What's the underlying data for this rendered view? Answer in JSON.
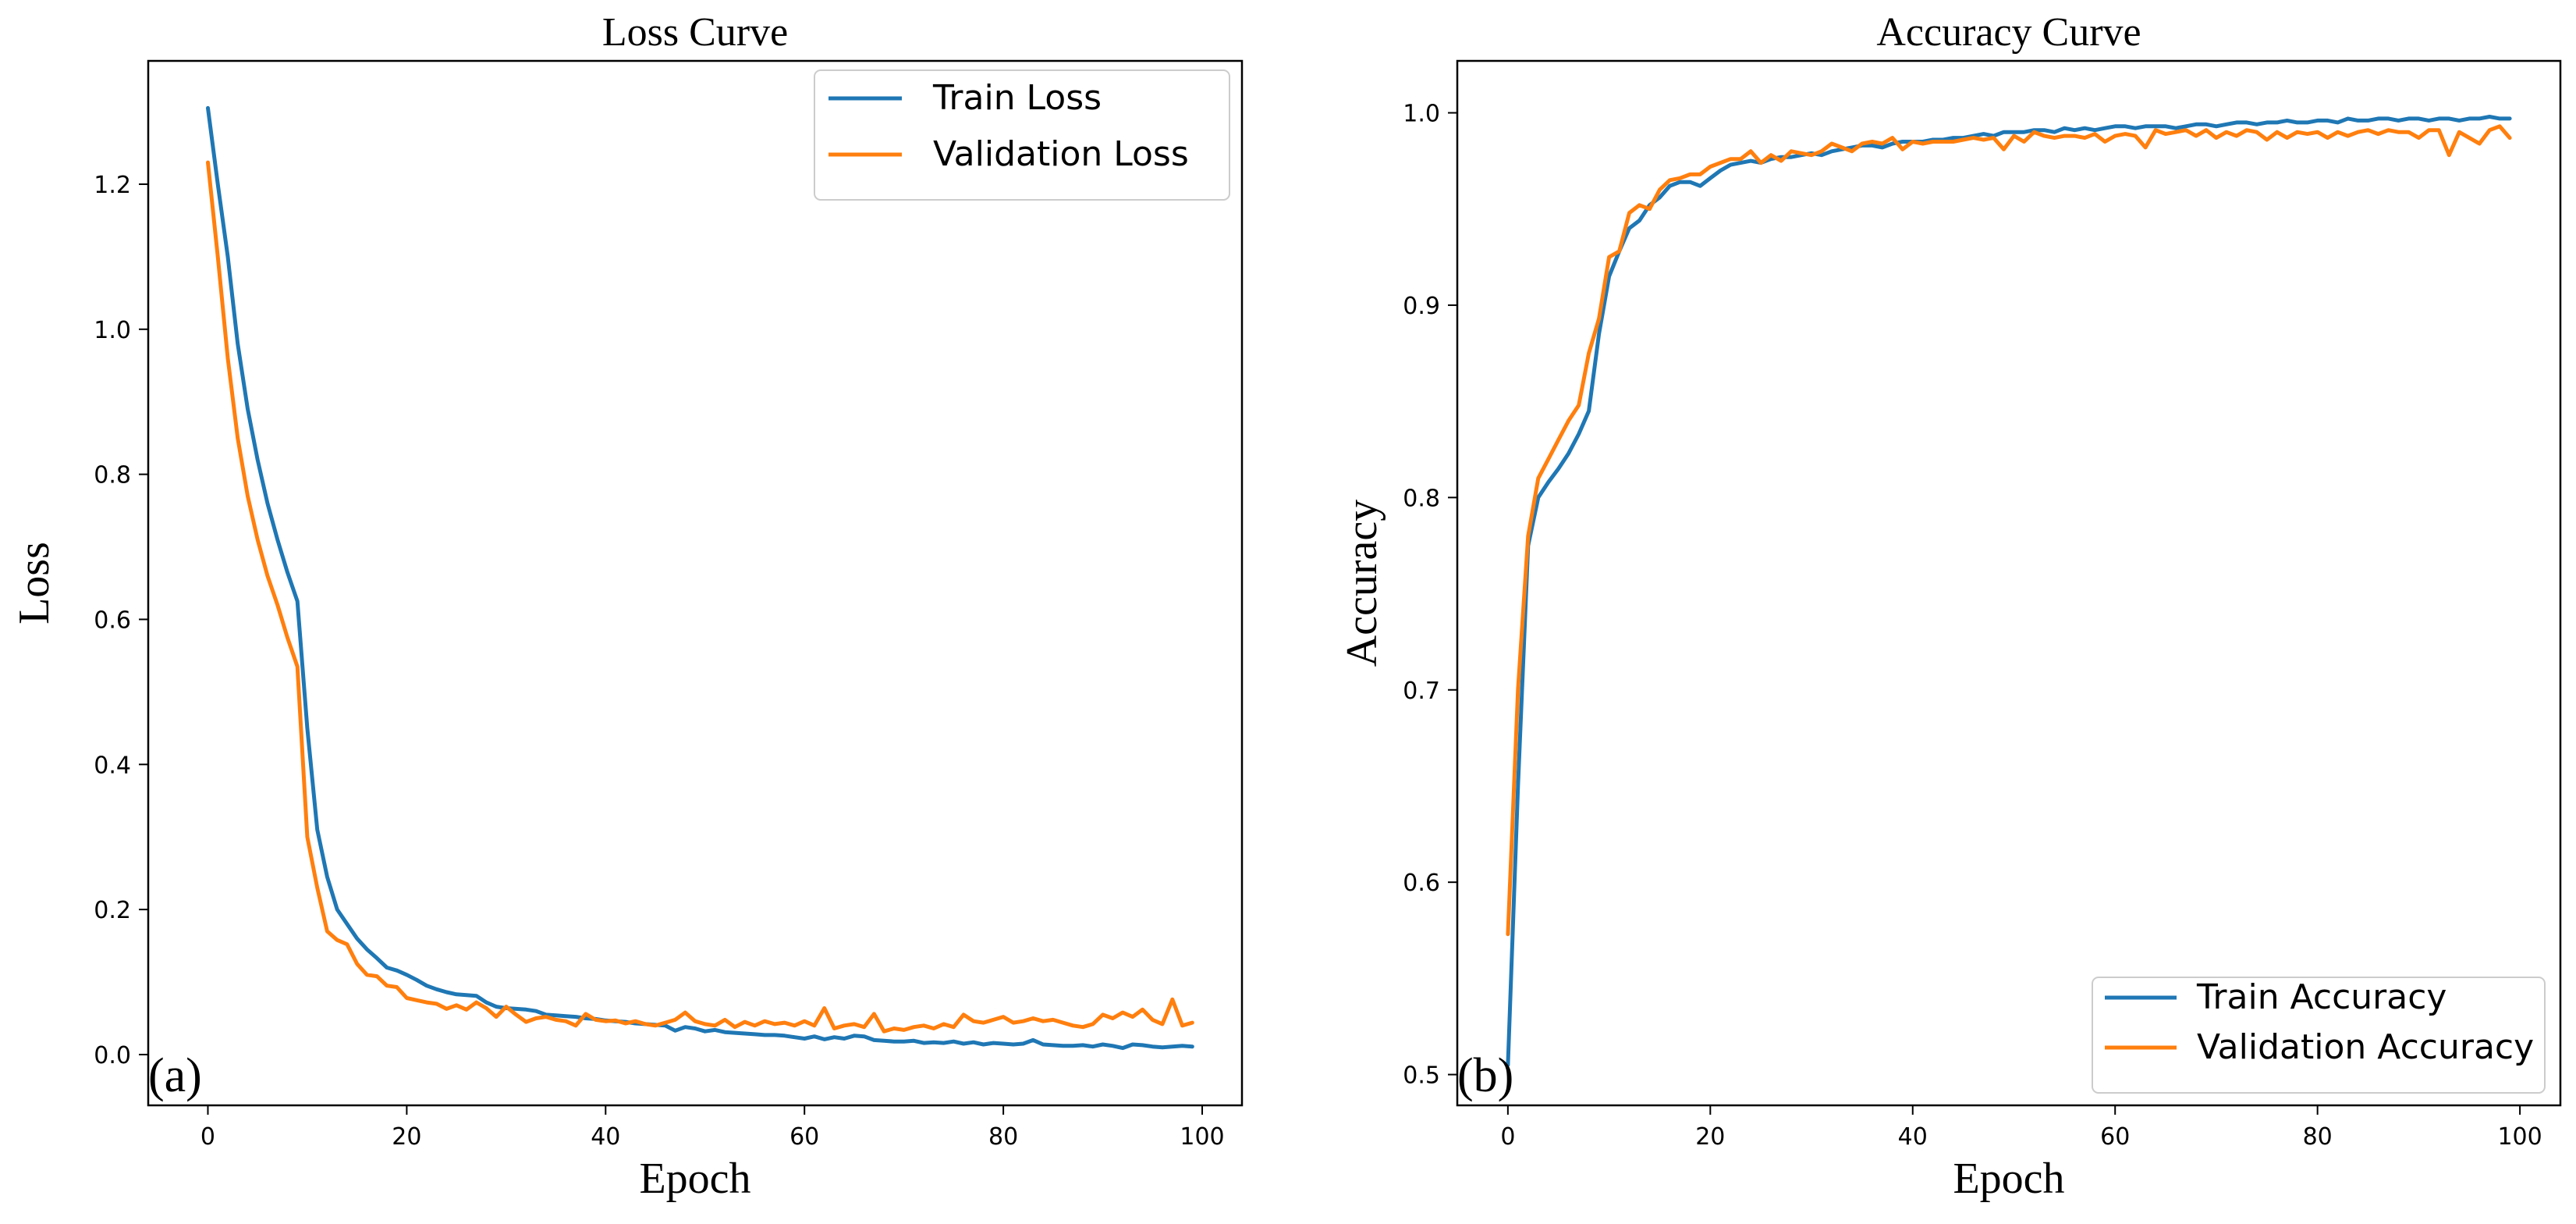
{
  "chart_data": [
    {
      "type": "line",
      "panel": "(a)",
      "title": "Loss Curve",
      "xlabel": "Epoch",
      "ylabel": "Loss",
      "xlim": [
        -6,
        104
      ],
      "ylim": [
        -0.07,
        1.37
      ],
      "xticks": [
        0,
        20,
        40,
        60,
        80,
        100
      ],
      "yticks": [
        0.0,
        0.2,
        0.4,
        0.6,
        0.8,
        1.0,
        1.2
      ],
      "xtick_labels": [
        "0",
        "20",
        "40",
        "60",
        "80",
        "100"
      ],
      "ytick_labels": [
        "0.0",
        "0.2",
        "0.4",
        "0.6",
        "0.8",
        "1.0",
        "1.2"
      ],
      "legend_position": "top-right",
      "grid": false,
      "series": [
        {
          "name": "Train Loss",
          "color": "#1f77b4",
          "values": [
            1.305,
            1.2,
            1.1,
            0.98,
            0.89,
            0.82,
            0.76,
            0.71,
            0.665,
            0.625,
            0.45,
            0.31,
            0.245,
            0.2,
            0.18,
            0.16,
            0.145,
            0.133,
            0.12,
            0.116,
            0.11,
            0.103,
            0.095,
            0.09,
            0.086,
            0.083,
            0.082,
            0.081,
            0.072,
            0.066,
            0.064,
            0.063,
            0.062,
            0.06,
            0.055,
            0.054,
            0.053,
            0.052,
            0.05,
            0.049,
            0.047,
            0.046,
            0.045,
            0.043,
            0.042,
            0.041,
            0.04,
            0.033,
            0.038,
            0.036,
            0.032,
            0.034,
            0.031,
            0.03,
            0.029,
            0.028,
            0.027,
            0.027,
            0.026,
            0.024,
            0.022,
            0.025,
            0.021,
            0.024,
            0.022,
            0.026,
            0.025,
            0.02,
            0.019,
            0.018,
            0.018,
            0.019,
            0.016,
            0.017,
            0.016,
            0.018,
            0.015,
            0.017,
            0.014,
            0.016,
            0.015,
            0.014,
            0.015,
            0.02,
            0.014,
            0.013,
            0.012,
            0.012,
            0.013,
            0.011,
            0.014,
            0.012,
            0.009,
            0.014,
            0.013,
            0.011,
            0.01,
            0.011,
            0.012,
            0.011
          ]
        },
        {
          "name": "Validation Loss",
          "color": "#ff7f0e",
          "values": [
            1.23,
            1.1,
            0.96,
            0.85,
            0.77,
            0.71,
            0.66,
            0.62,
            0.575,
            0.535,
            0.3,
            0.23,
            0.17,
            0.158,
            0.152,
            0.125,
            0.11,
            0.108,
            0.095,
            0.093,
            0.078,
            0.075,
            0.072,
            0.07,
            0.063,
            0.068,
            0.062,
            0.072,
            0.064,
            0.052,
            0.066,
            0.055,
            0.045,
            0.05,
            0.052,
            0.048,
            0.046,
            0.04,
            0.056,
            0.048,
            0.046,
            0.047,
            0.043,
            0.046,
            0.042,
            0.04,
            0.044,
            0.048,
            0.058,
            0.046,
            0.042,
            0.04,
            0.048,
            0.038,
            0.045,
            0.04,
            0.046,
            0.042,
            0.044,
            0.04,
            0.046,
            0.04,
            0.064,
            0.036,
            0.04,
            0.042,
            0.038,
            0.056,
            0.032,
            0.036,
            0.034,
            0.038,
            0.04,
            0.036,
            0.042,
            0.038,
            0.055,
            0.046,
            0.044,
            0.048,
            0.052,
            0.044,
            0.046,
            0.05,
            0.046,
            0.048,
            0.044,
            0.04,
            0.038,
            0.042,
            0.055,
            0.05,
            0.058,
            0.052,
            0.062,
            0.048,
            0.042,
            0.076,
            0.04,
            0.044
          ]
        }
      ]
    },
    {
      "type": "line",
      "panel": "(b)",
      "title": "Accuracy Curve",
      "xlabel": "Epoch",
      "ylabel": "Accuracy",
      "xlim": [
        -5,
        104
      ],
      "ylim": [
        0.484,
        1.027
      ],
      "xticks": [
        0,
        20,
        40,
        60,
        80,
        100
      ],
      "yticks": [
        0.5,
        0.6,
        0.7,
        0.8,
        0.9,
        1.0
      ],
      "xtick_labels": [
        "0",
        "20",
        "40",
        "60",
        "80",
        "100"
      ],
      "ytick_labels": [
        "0.5",
        "0.6",
        "0.7",
        "0.8",
        "0.9",
        "1.0"
      ],
      "legend_position": "bottom-right",
      "grid": false,
      "series": [
        {
          "name": "Train Accuracy",
          "color": "#1f77b4",
          "values": [
            0.505,
            0.65,
            0.775,
            0.8,
            0.808,
            0.815,
            0.823,
            0.833,
            0.845,
            0.885,
            0.915,
            0.928,
            0.94,
            0.944,
            0.952,
            0.956,
            0.962,
            0.964,
            0.964,
            0.962,
            0.966,
            0.97,
            0.973,
            0.974,
            0.975,
            0.974,
            0.976,
            0.977,
            0.977,
            0.978,
            0.979,
            0.978,
            0.98,
            0.981,
            0.982,
            0.983,
            0.983,
            0.982,
            0.984,
            0.985,
            0.985,
            0.985,
            0.986,
            0.986,
            0.987,
            0.987,
            0.988,
            0.989,
            0.988,
            0.99,
            0.99,
            0.99,
            0.991,
            0.991,
            0.99,
            0.992,
            0.991,
            0.992,
            0.991,
            0.992,
            0.993,
            0.993,
            0.992,
            0.993,
            0.993,
            0.993,
            0.992,
            0.993,
            0.994,
            0.994,
            0.993,
            0.994,
            0.995,
            0.995,
            0.994,
            0.995,
            0.995,
            0.996,
            0.995,
            0.995,
            0.996,
            0.996,
            0.995,
            0.997,
            0.996,
            0.996,
            0.997,
            0.997,
            0.996,
            0.997,
            0.997,
            0.996,
            0.997,
            0.997,
            0.996,
            0.997,
            0.997,
            0.998,
            0.997,
            0.997
          ]
        },
        {
          "name": "Validation Accuracy",
          "color": "#ff7f0e",
          "values": [
            0.573,
            0.7,
            0.78,
            0.81,
            0.82,
            0.83,
            0.84,
            0.848,
            0.875,
            0.893,
            0.925,
            0.928,
            0.948,
            0.952,
            0.95,
            0.96,
            0.965,
            0.966,
            0.968,
            0.968,
            0.972,
            0.974,
            0.976,
            0.976,
            0.98,
            0.974,
            0.978,
            0.975,
            0.98,
            0.979,
            0.978,
            0.98,
            0.984,
            0.982,
            0.98,
            0.984,
            0.985,
            0.984,
            0.987,
            0.981,
            0.985,
            0.984,
            0.985,
            0.985,
            0.985,
            0.986,
            0.987,
            0.986,
            0.987,
            0.981,
            0.988,
            0.985,
            0.99,
            0.988,
            0.987,
            0.988,
            0.988,
            0.987,
            0.989,
            0.985,
            0.988,
            0.989,
            0.988,
            0.982,
            0.991,
            0.989,
            0.99,
            0.991,
            0.988,
            0.991,
            0.987,
            0.99,
            0.988,
            0.991,
            0.99,
            0.986,
            0.99,
            0.987,
            0.99,
            0.989,
            0.99,
            0.987,
            0.99,
            0.988,
            0.99,
            0.991,
            0.989,
            0.991,
            0.99,
            0.99,
            0.987,
            0.991,
            0.991,
            0.978,
            0.99,
            0.987,
            0.984,
            0.991,
            0.993,
            0.987
          ]
        }
      ]
    }
  ]
}
